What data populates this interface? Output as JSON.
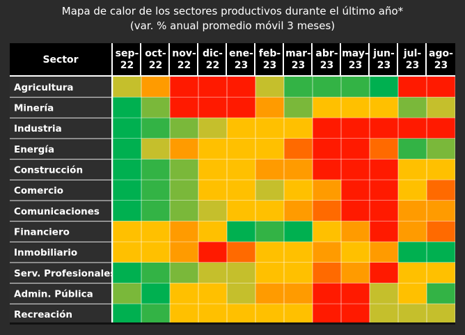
{
  "title_line1": "Mapa de calor de los sectores productivos durante el último año*",
  "title_line2": "(var. % anual promedio móvil 3 meses)",
  "palette": {
    "0": "#00b050",
    "1": "#33b345",
    "2": "#7ab83a",
    "3": "#c5bf2c",
    "4": "#ffc000",
    "5": "#ff9b00",
    "6": "#ff6a00",
    "7": "#ff1a00"
  },
  "chart_data": {
    "type": "heatmap",
    "row_header": "Sector",
    "columns": [
      [
        "sep-",
        "22"
      ],
      [
        "oct-",
        "22"
      ],
      [
        "nov-",
        "22"
      ],
      [
        "dic-",
        "22"
      ],
      [
        "ene-",
        "23"
      ],
      [
        "feb-",
        "23"
      ],
      [
        "mar-",
        "23"
      ],
      [
        "abr-",
        "23"
      ],
      [
        "may-",
        "23"
      ],
      [
        "jun-",
        "23"
      ],
      [
        "jul-",
        "23"
      ],
      [
        "ago-",
        "23"
      ]
    ],
    "rows": [
      {
        "label": "Agricultura",
        "levels": [
          3,
          5,
          7,
          7,
          7,
          3,
          1,
          1,
          1,
          0,
          7,
          7
        ]
      },
      {
        "label": "Minería",
        "levels": [
          0,
          2,
          7,
          7,
          7,
          5,
          2,
          4,
          4,
          4,
          2,
          3
        ]
      },
      {
        "label": "Industria",
        "levels": [
          0,
          1,
          2,
          3,
          4,
          4,
          4,
          7,
          7,
          7,
          7,
          7
        ]
      },
      {
        "label": "Energía",
        "levels": [
          0,
          3,
          5,
          4,
          4,
          4,
          6,
          7,
          7,
          6,
          1,
          2
        ]
      },
      {
        "label": "Construcción",
        "levels": [
          0,
          1,
          2,
          4,
          4,
          5,
          5,
          7,
          7,
          7,
          4,
          4
        ]
      },
      {
        "label": "Comercio",
        "levels": [
          0,
          1,
          2,
          4,
          4,
          3,
          4,
          5,
          7,
          7,
          4,
          6
        ]
      },
      {
        "label": "Comunicaciones",
        "levels": [
          0,
          1,
          2,
          3,
          4,
          4,
          5,
          6,
          7,
          7,
          5,
          5
        ]
      },
      {
        "label": "Financiero",
        "levels": [
          4,
          4,
          5,
          4,
          0,
          1,
          0,
          4,
          5,
          7,
          5,
          6
        ]
      },
      {
        "label": "Inmobiliario",
        "levels": [
          4,
          4,
          5,
          7,
          6,
          4,
          4,
          5,
          4,
          5,
          0,
          0
        ]
      },
      {
        "label": "Serv. Profesionales",
        "levels": [
          0,
          1,
          2,
          3,
          3,
          4,
          4,
          6,
          5,
          7,
          4,
          4
        ]
      },
      {
        "label": "Admin. Pública",
        "levels": [
          2,
          0,
          4,
          4,
          3,
          5,
          5,
          7,
          7,
          3,
          4,
          1
        ]
      },
      {
        "label": "Recreación",
        "levels": [
          0,
          1,
          4,
          4,
          4,
          4,
          4,
          7,
          7,
          3,
          3,
          3
        ]
      }
    ]
  }
}
